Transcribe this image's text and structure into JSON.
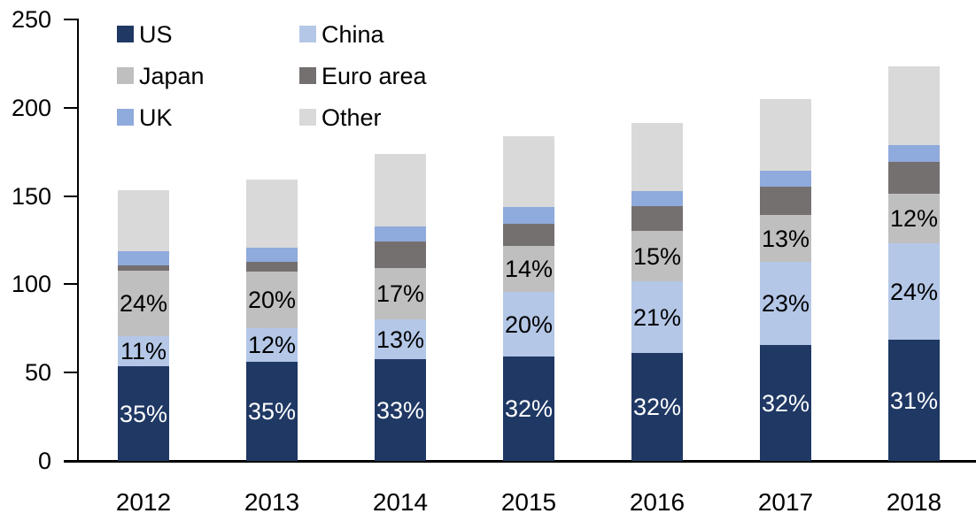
{
  "chart_data": {
    "type": "bar",
    "stacked": true,
    "title": "",
    "xlabel": "",
    "ylabel": "",
    "ylim": [
      0,
      250
    ],
    "yticks": [
      0,
      50,
      100,
      150,
      200,
      250
    ],
    "grid": false,
    "legend_position": "top-left",
    "categories": [
      "2012",
      "2013",
      "2014",
      "2015",
      "2016",
      "2017",
      "2018"
    ],
    "series": [
      {
        "name": "US",
        "color": "#1F3864",
        "values": [
          53.5,
          56.0,
          57.5,
          59.0,
          61.3,
          65.5,
          68.6
        ],
        "labels": [
          "35%",
          "35%",
          "33%",
          "32%",
          "32%",
          "32%",
          "31%"
        ],
        "label_color": "#ffffff"
      },
      {
        "name": "China",
        "color": "#B4C7E7",
        "values": [
          17.0,
          19.2,
          22.7,
          36.5,
          40.2,
          47.0,
          54.6
        ],
        "labels": [
          "11%",
          "12%",
          "13%",
          "20%",
          "21%",
          "23%",
          "24%"
        ],
        "label_color": "#000000"
      },
      {
        "name": "Japan",
        "color": "#BFBFBF",
        "values": [
          37.0,
          32.0,
          28.9,
          26.0,
          28.7,
          26.6,
          27.9
        ],
        "labels": [
          "24%",
          "20%",
          "17%",
          "14%",
          "15%",
          "13%",
          "12%"
        ],
        "label_color": "#000000"
      },
      {
        "name": "Euro area",
        "color": "#757070",
        "values": [
          3.0,
          5.3,
          15.0,
          13.0,
          14.0,
          16.0,
          18.3
        ],
        "labels": null,
        "label_color": "#000000"
      },
      {
        "name": "UK",
        "color": "#8FAADC",
        "values": [
          8.0,
          8.4,
          8.7,
          9.2,
          8.7,
          9.0,
          9.7
        ],
        "labels": null,
        "label_color": "#000000"
      },
      {
        "name": "Other",
        "color": "#D9D9D9",
        "values": [
          35.0,
          38.6,
          41.2,
          40.3,
          38.4,
          40.9,
          44.2
        ],
        "labels": null,
        "label_color": "#000000"
      }
    ],
    "totals": [
      153.5,
      159.5,
      174.0,
      184.0,
      191.3,
      205.0,
      223.3
    ]
  },
  "legend": {
    "items": [
      {
        "label": "US"
      },
      {
        "label": "China"
      },
      {
        "label": "Japan"
      },
      {
        "label": "Euro area"
      },
      {
        "label": "UK"
      },
      {
        "label": "Other"
      }
    ]
  },
  "axis_color": "#000000"
}
